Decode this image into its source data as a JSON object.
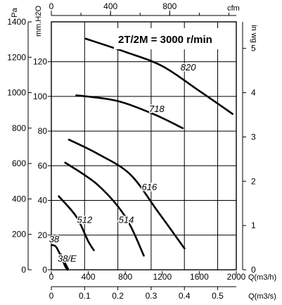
{
  "chart_data": {
    "type": "line",
    "title": "2T/2M = 3000 r/min",
    "grid": true,
    "axes": {
      "pa": {
        "label": "Pa",
        "ticks": [
          "0",
          "200",
          "400",
          "600",
          "800",
          "1000",
          "1200",
          "1400"
        ],
        "range": [
          0,
          1400
        ]
      },
      "mmh2o": {
        "label": "mm.H2O",
        "ticks": [
          "0",
          "20",
          "40",
          "60",
          "80",
          "100",
          "120"
        ],
        "range": [
          0,
          143
        ]
      },
      "inwg": {
        "label": "in wg",
        "ticks": [
          "0",
          "1",
          "2",
          "3",
          "4",
          "5"
        ],
        "range": [
          0,
          5.6
        ]
      },
      "cfm": {
        "label": "cfm",
        "ticks": [
          "0",
          "400",
          "800"
        ],
        "range": [
          0,
          1250
        ]
      },
      "m3h": {
        "label": "Q(m3/h)",
        "ticks": [
          "0",
          "400",
          "800",
          "1200",
          "1600",
          "2000"
        ],
        "range": [
          0,
          2000
        ]
      },
      "m3s": {
        "label": "Q(m3/s)",
        "ticks": [
          "0",
          "0.1",
          "0.2",
          "0.3",
          "0.4",
          "0.5"
        ],
        "range": [
          0,
          0.556
        ]
      }
    },
    "series": [
      {
        "name": "820",
        "label_at": [
          1480,
          1125
        ],
        "points": [
          [
            370,
            1305
          ],
          [
            800,
            1230
          ],
          [
            1200,
            1150
          ],
          [
            1600,
            1010
          ],
          [
            1960,
            880
          ]
        ]
      },
      {
        "name": "718",
        "label_at": [
          1140,
          890
        ],
        "points": [
          [
            270,
            985
          ],
          [
            700,
            955
          ],
          [
            1100,
            880
          ],
          [
            1420,
            800
          ]
        ]
      },
      {
        "name": "616",
        "label_at": [
          1060,
          450
        ],
        "points": [
          [
            190,
            735
          ],
          [
            500,
            655
          ],
          [
            850,
            540
          ],
          [
            1150,
            330
          ],
          [
            1440,
            120
          ]
        ]
      },
      {
        "name": "514",
        "label_at": [
          810,
          265
        ],
        "points": [
          [
            150,
            605
          ],
          [
            500,
            480
          ],
          [
            800,
            300
          ],
          [
            1000,
            80
          ]
        ]
      },
      {
        "name": "512",
        "label_at": [
          360,
          265
        ],
        "points": [
          [
            80,
            415
          ],
          [
            270,
            300
          ],
          [
            400,
            160
          ],
          [
            460,
            110
          ]
        ]
      },
      {
        "name": "38",
        "label_at": [
          30,
          155
        ],
        "points": [
          [
            5,
            140
          ],
          [
            50,
            130
          ],
          [
            100,
            80
          ],
          [
            150,
            20
          ],
          [
            175,
            0
          ]
        ]
      },
      {
        "name": "38/E",
        "label_at": [
          170,
          45
        ],
        "points": [
          [
            100,
            85
          ],
          [
            140,
            40
          ],
          [
            175,
            5
          ]
        ]
      }
    ]
  }
}
